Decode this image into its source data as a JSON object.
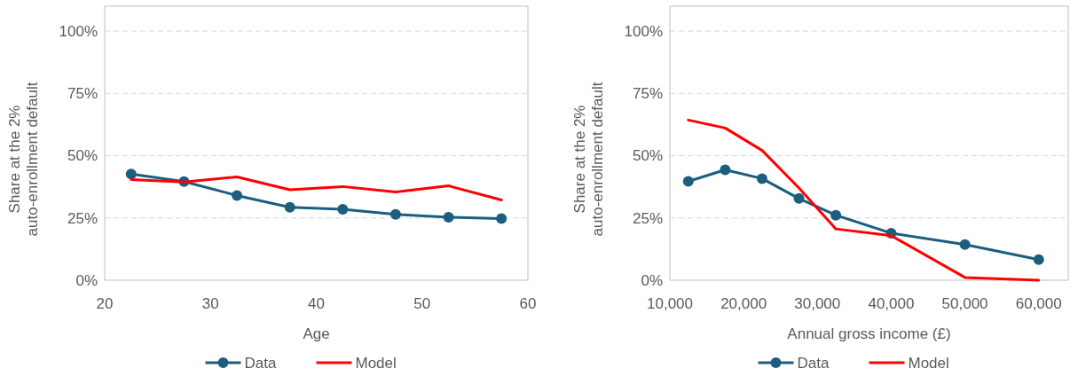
{
  "chart_data": [
    {
      "type": "line",
      "xlabel": "Age",
      "ylabel": "Share at the 2% auto-enrollment default",
      "x": [
        22.5,
        27.5,
        32.5,
        37.5,
        42.5,
        47.5,
        52.5,
        57.5
      ],
      "xlim": [
        20,
        60
      ],
      "xticks": [
        20,
        30,
        40,
        50,
        60
      ],
      "ylim": [
        0,
        110
      ],
      "yticks": [
        {
          "value": 0,
          "label": "0%"
        },
        {
          "value": 25,
          "label": "25%"
        },
        {
          "value": 50,
          "label": "50%"
        },
        {
          "value": 75,
          "label": "75%"
        },
        {
          "value": 100,
          "label": "100%"
        }
      ],
      "grid": "y",
      "legend": "bottom",
      "series": [
        {
          "name": "Data",
          "color": "#1b5e7e",
          "marker": "circle",
          "values": [
            42.6,
            39.6,
            34.0,
            29.3,
            28.5,
            26.4,
            25.3,
            24.7
          ]
        },
        {
          "name": "Model",
          "color": "#ff0000",
          "marker": "none",
          "values": [
            40.4,
            39.4,
            41.5,
            36.3,
            37.6,
            35.4,
            37.9,
            32.2
          ]
        }
      ]
    },
    {
      "type": "line",
      "xlabel": "Annual gross income (£)",
      "ylabel": "Share at the 2% auto-enrollment default",
      "x": [
        12500,
        17500,
        22500,
        27500,
        32500,
        40000,
        50000,
        60000
      ],
      "xlim": [
        10000,
        64000
      ],
      "xticks": [
        {
          "value": 10000,
          "label": "10,000"
        },
        {
          "value": 20000,
          "label": "20,000"
        },
        {
          "value": 30000,
          "label": "30,000"
        },
        {
          "value": 40000,
          "label": "40,000"
        },
        {
          "value": 50000,
          "label": "50,000"
        },
        {
          "value": 60000,
          "label": "60,000"
        }
      ],
      "ylim": [
        0,
        110
      ],
      "yticks": [
        {
          "value": 0,
          "label": "0%"
        },
        {
          "value": 25,
          "label": "25%"
        },
        {
          "value": 50,
          "label": "50%"
        },
        {
          "value": 75,
          "label": "75%"
        },
        {
          "value": 100,
          "label": "100%"
        }
      ],
      "grid": "y",
      "legend": "bottom",
      "series": [
        {
          "name": "Data",
          "color": "#1b5e7e",
          "marker": "circle",
          "values": [
            39.7,
            44.3,
            40.8,
            32.8,
            26.1,
            18.9,
            14.3,
            8.3
          ]
        },
        {
          "name": "Model",
          "color": "#ff0000",
          "marker": "none",
          "values": [
            64.3,
            61.1,
            52.1,
            37,
            20.6,
            17.9,
            1.1,
            0
          ]
        }
      ]
    }
  ]
}
